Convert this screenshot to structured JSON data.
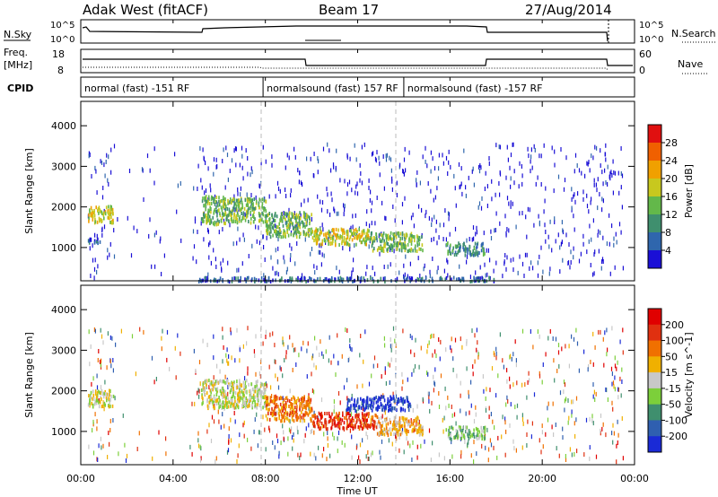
{
  "header": {
    "radar": "Adak West (fitACF)",
    "beam": "Beam 17",
    "date": "27/Aug/2014"
  },
  "panels": {
    "nsky": {
      "label": "N.Sky",
      "left_ticks": [
        "10^5",
        "10^0"
      ],
      "right_ticks": [
        "10^5",
        "10^0"
      ],
      "right_label": "N.Search"
    },
    "freq": {
      "label_1": "Freq.",
      "label_2": "[MHz]",
      "left_ticks": [
        "18",
        "8"
      ],
      "right_ticks": [
        "60",
        "0"
      ],
      "right_label": "Nave"
    },
    "cpid": {
      "label": "CPID",
      "segments": [
        {
          "start_h": 0.0,
          "text": "normal (fast) -151 RF"
        },
        {
          "start_h": 7.9,
          "text": "normalsound (fast) 157 RF"
        },
        {
          "start_h": 14.0,
          "text": "normalsound (fast) -157 RF"
        }
      ]
    }
  },
  "time_axis": {
    "label": "Time UT",
    "ticks": [
      "00:00",
      "04:00",
      "08:00",
      "12:00",
      "16:00",
      "20:00",
      "00:00"
    ],
    "range_h": [
      0,
      24
    ]
  },
  "chart_data": [
    {
      "type": "heatmap",
      "name": "power",
      "ylabel": "Slant Range [km]",
      "xlabel": "Time UT",
      "xlim": [
        0,
        24
      ],
      "ylim": [
        180,
        4600
      ],
      "yticks": [
        "1000",
        "2000",
        "3000",
        "4000"
      ],
      "colorbar_label": "Power [dB]",
      "colorbar_ticks": [
        "4",
        "8",
        "12",
        "16",
        "20",
        "24",
        "28"
      ],
      "colorbar_colors": [
        "#1a0fd6",
        "#2f66ad",
        "#3f8f6e",
        "#63b84a",
        "#c8c81e",
        "#f0a000",
        "#f06000",
        "#e01010"
      ],
      "scatter_bands": [
        {
          "t0": 0.3,
          "t1": 1.4,
          "r0": 1650,
          "r1": 2050,
          "level": 4
        },
        {
          "t0": 0.3,
          "t1": 1.0,
          "r0": 1150,
          "r1": 1250,
          "level": 1
        },
        {
          "t0": 5.2,
          "t1": 6.3,
          "r0": 1600,
          "r1": 2300,
          "level": 3
        },
        {
          "t0": 6.3,
          "t1": 8.0,
          "r0": 1650,
          "r1": 2250,
          "level": 3
        },
        {
          "t0": 8.0,
          "t1": 10.0,
          "r0": 1300,
          "r1": 1900,
          "level": 3
        },
        {
          "t0": 10.0,
          "t1": 12.5,
          "r0": 1100,
          "r1": 1500,
          "level": 4
        },
        {
          "t0": 12.5,
          "t1": 14.8,
          "r0": 950,
          "r1": 1400,
          "level": 3
        },
        {
          "t0": 15.8,
          "t1": 17.5,
          "r0": 850,
          "r1": 1150,
          "level": 2
        },
        {
          "t0": 5.0,
          "t1": 18.0,
          "r0": 200,
          "r1": 300,
          "level": 1
        }
      ]
    },
    {
      "type": "heatmap",
      "name": "velocity",
      "ylabel": "Slant Range [km]",
      "xlabel": "Time UT",
      "xlim": [
        0,
        24
      ],
      "ylim": [
        180,
        4600
      ],
      "yticks": [
        "1000",
        "2000",
        "3000",
        "4000"
      ],
      "colorbar_label": "Velocity [m s^-1]",
      "colorbar_ticks": [
        "200",
        "100",
        "50",
        "15",
        "-15",
        "-50",
        "-100",
        "-200"
      ],
      "colorbar_colors": [
        "#1a2ad6",
        "#2f5fb0",
        "#3f8f6e",
        "#7ccf3a",
        "#c8c8c8",
        "#f0b000",
        "#f07000",
        "#e03010",
        "#e00000"
      ],
      "scatter_bands": [
        {
          "t0": 0.3,
          "t1": 1.4,
          "r0": 1650,
          "r1": 2050,
          "level": 4
        },
        {
          "t0": 5.2,
          "t1": 8.0,
          "r0": 1600,
          "r1": 2300,
          "level": 4
        },
        {
          "t0": 8.0,
          "t1": 10.0,
          "r0": 1300,
          "r1": 1900,
          "level": 6
        },
        {
          "t0": 10.0,
          "t1": 12.8,
          "r0": 1100,
          "r1": 1500,
          "level": 7
        },
        {
          "t0": 11.5,
          "t1": 14.3,
          "r0": 1550,
          "r1": 1900,
          "level": 0
        },
        {
          "t0": 12.8,
          "t1": 14.8,
          "r0": 950,
          "r1": 1400,
          "level": 5
        },
        {
          "t0": 15.8,
          "t1": 17.5,
          "r0": 850,
          "r1": 1150,
          "level": 3
        }
      ]
    }
  ]
}
